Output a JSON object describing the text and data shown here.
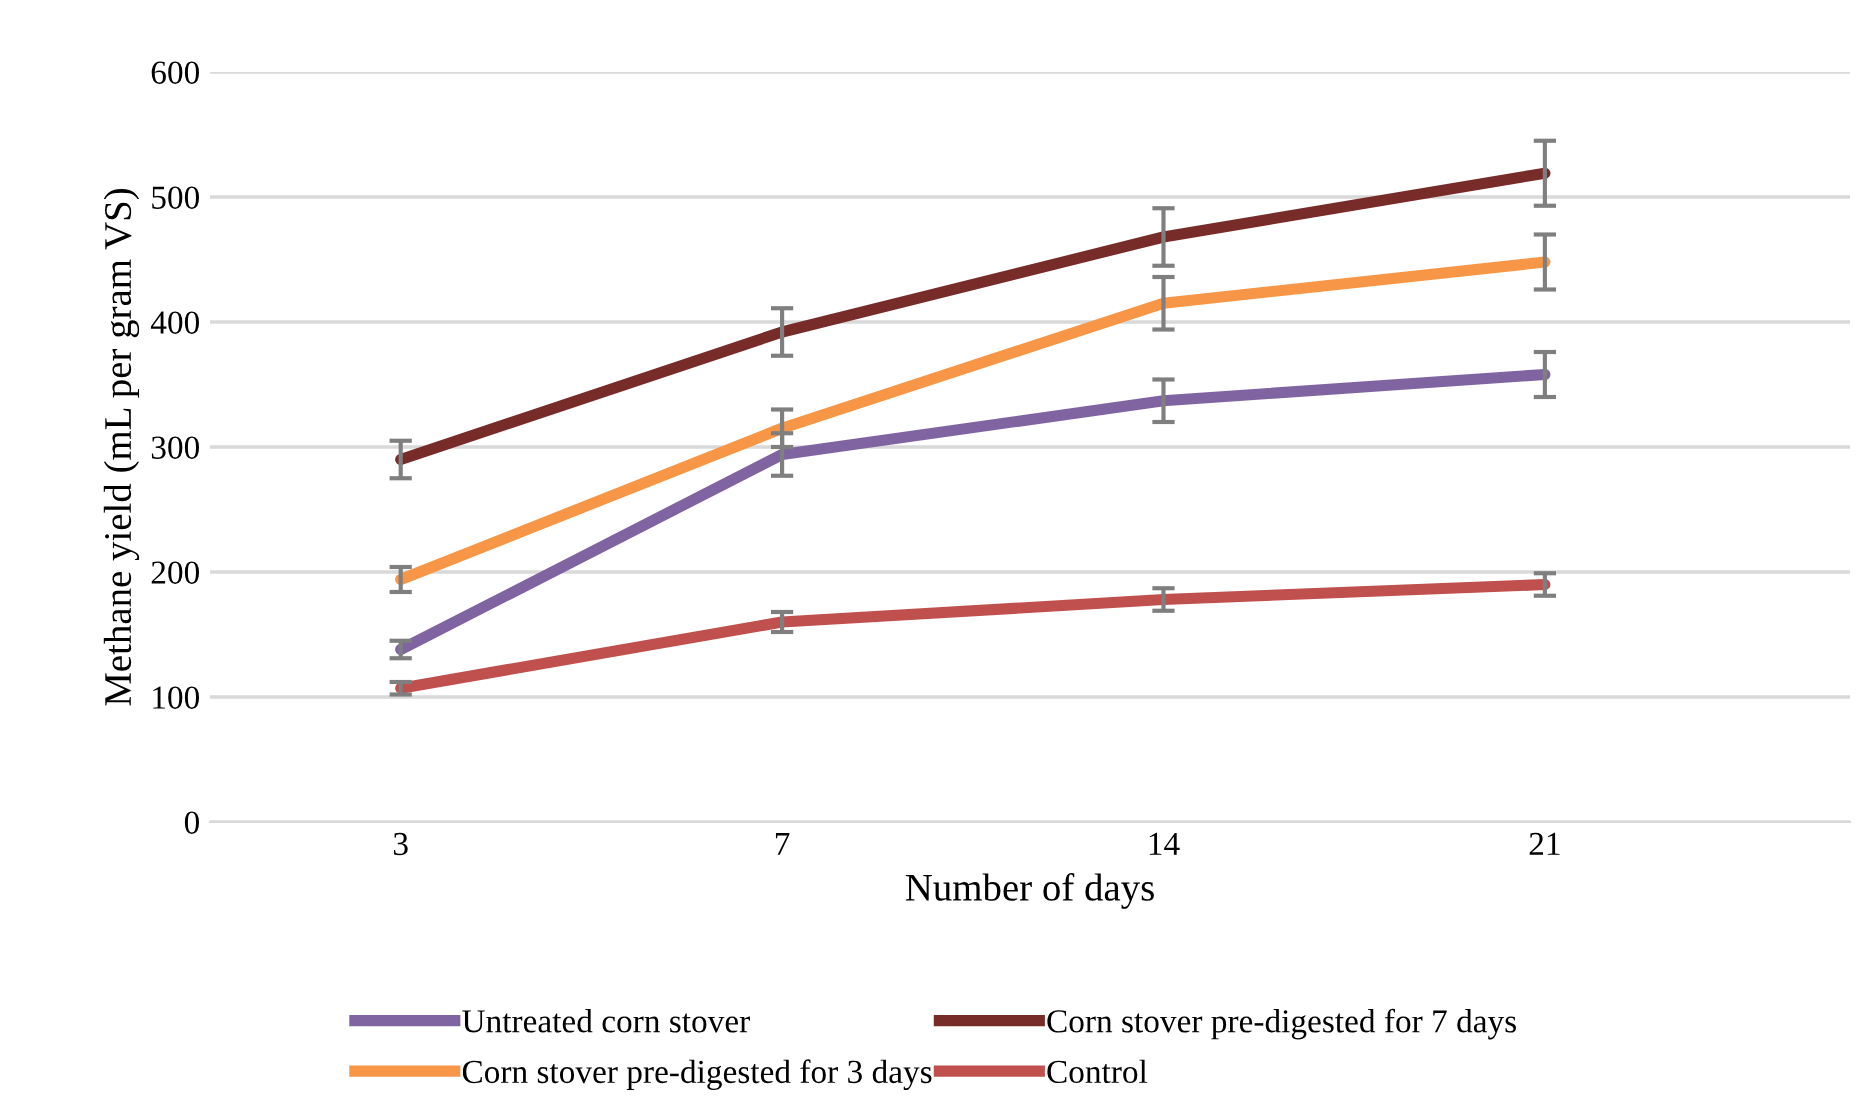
{
  "chart_data": {
    "type": "line",
    "xlabel": "Number of days",
    "ylabel": "Methane yield (mL per gram VS)",
    "categories": [
      "3",
      "7",
      "14",
      "21"
    ],
    "series": [
      {
        "name": "Untreated corn stover",
        "color": "#8064a2",
        "values": [
          138,
          294,
          337,
          358
        ],
        "errors": [
          7,
          17,
          17,
          18
        ]
      },
      {
        "name": "Corn stover pre-digested for 3 days",
        "color": "#f79646",
        "values": [
          194,
          315,
          415,
          448
        ],
        "errors": [
          10,
          15,
          21,
          22
        ]
      },
      {
        "name": "Corn stover pre-digested for 7 days",
        "color": "#772c2a",
        "values": [
          290,
          392,
          468,
          519
        ],
        "errors": [
          15,
          19,
          23,
          26
        ]
      },
      {
        "name": "Control",
        "color": "#c0504d",
        "values": [
          107,
          160,
          178,
          190
        ],
        "errors": [
          5,
          8,
          9,
          9
        ]
      }
    ],
    "ylim": [
      0,
      600
    ],
    "yticks": [
      0,
      100,
      200,
      300,
      400,
      500,
      600
    ],
    "grid": "y",
    "legend": "bottom",
    "marker": "none",
    "line_style": "solid"
  }
}
